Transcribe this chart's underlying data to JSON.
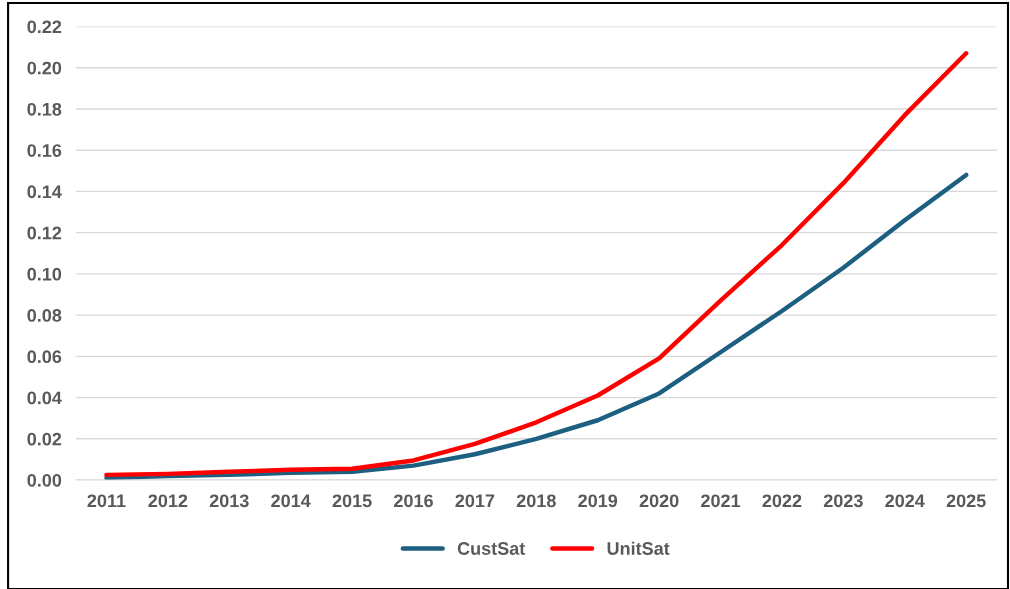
{
  "chart_data": {
    "type": "line",
    "categories": [
      "2011",
      "2012",
      "2013",
      "2014",
      "2015",
      "2016",
      "2017",
      "2018",
      "2019",
      "2020",
      "2021",
      "2022",
      "2023",
      "2024",
      "2025"
    ],
    "series": [
      {
        "name": "CustSat",
        "color": "#1d5f80",
        "values": [
          0.001,
          0.002,
          0.0025,
          0.0035,
          0.004,
          0.007,
          0.0125,
          0.02,
          0.029,
          0.042,
          0.062,
          0.082,
          0.103,
          0.126,
          0.148
        ]
      },
      {
        "name": "UnitSat",
        "color": "#ff0000",
        "values": [
          0.0025,
          0.003,
          0.004,
          0.005,
          0.0055,
          0.0095,
          0.0175,
          0.028,
          0.041,
          0.059,
          0.087,
          0.114,
          0.144,
          0.177,
          0.207
        ]
      }
    ],
    "ylim": [
      0,
      0.22
    ],
    "yticks": [
      {
        "value": 0,
        "label": "0.00"
      },
      {
        "value": 0.02,
        "label": "0.02"
      },
      {
        "value": 0.04,
        "label": "0.04"
      },
      {
        "value": 0.06,
        "label": "0.06"
      },
      {
        "value": 0.08,
        "label": "0.08"
      },
      {
        "value": 0.1,
        "label": "0.10"
      },
      {
        "value": 0.12,
        "label": "0.12"
      },
      {
        "value": 0.14,
        "label": "0.14"
      },
      {
        "value": 0.16,
        "label": "0.16"
      },
      {
        "value": 0.18,
        "label": "0.18"
      },
      {
        "value": 0.2,
        "label": "0.20"
      },
      {
        "value": 0.22,
        "label": "0.22"
      }
    ],
    "grid": "y",
    "legend": "bottom",
    "marker": "none",
    "line_style": "solid"
  }
}
